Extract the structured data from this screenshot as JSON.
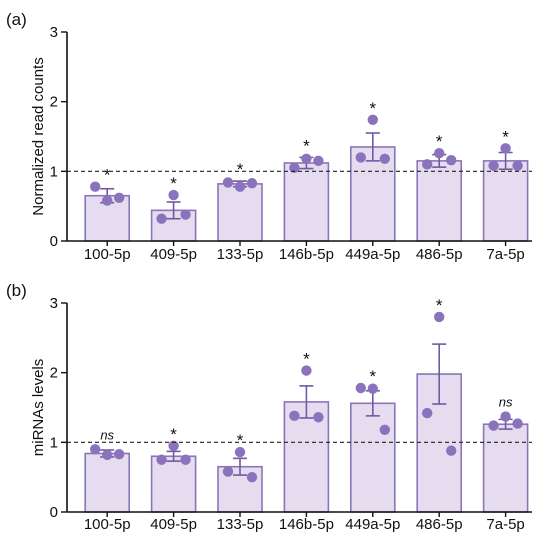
{
  "colors": {
    "bar_fill": "#e6dcf0",
    "bar_stroke": "#8a75b8",
    "dot": "#8a72bd",
    "error": "#6f5aa3",
    "axis": "#111111",
    "reference_line": "#222222"
  },
  "chart_data": [
    {
      "type": "bar",
      "panel_label": "(a)",
      "ylabel": "Normalized read counts",
      "ylim": [
        0,
        3
      ],
      "yticks": [
        "0",
        "1",
        "2",
        "3"
      ],
      "reference_line": 1,
      "categories": [
        "100-5p",
        "409-5p",
        "133-5p",
        "146b-5p",
        "449a-5p",
        "486-5p",
        "7a-5p"
      ],
      "values": [
        0.65,
        0.44,
        0.82,
        1.12,
        1.35,
        1.15,
        1.15
      ],
      "errors": [
        0.1,
        0.12,
        0.04,
        0.08,
        0.2,
        0.09,
        0.12
      ],
      "points": [
        [
          0.58,
          0.78,
          0.62
        ],
        [
          0.66,
          0.32,
          0.38
        ],
        [
          0.78,
          0.84,
          0.83
        ],
        [
          1.18,
          1.05,
          1.15
        ],
        [
          1.74,
          1.2,
          1.18
        ],
        [
          1.26,
          1.1,
          1.16
        ],
        [
          1.33,
          1.08,
          1.08
        ]
      ],
      "annotations": [
        "*",
        "*",
        "*",
        "*",
        "*",
        "*",
        "*"
      ]
    },
    {
      "type": "bar",
      "panel_label": "(b)",
      "ylabel": "miRNAs levels",
      "ylim": [
        0,
        3
      ],
      "yticks": [
        "0",
        "1",
        "2",
        "3"
      ],
      "reference_line": 1,
      "categories": [
        "100-5p",
        "409-5p",
        "133-5p",
        "146b-5p",
        "449a-5p",
        "486-5p",
        "7a-5p"
      ],
      "values": [
        0.84,
        0.8,
        0.65,
        1.58,
        1.56,
        1.98,
        1.26
      ],
      "errors": [
        0.05,
        0.07,
        0.12,
        0.23,
        0.18,
        0.43,
        0.07
      ],
      "points": [
        [
          0.82,
          0.9,
          0.83
        ],
        [
          0.95,
          0.75,
          0.75
        ],
        [
          0.86,
          0.58,
          0.5
        ],
        [
          2.03,
          1.38,
          1.36
        ],
        [
          1.77,
          1.78,
          1.18
        ],
        [
          2.8,
          1.42,
          0.88
        ],
        [
          1.37,
          1.24,
          1.27
        ]
      ],
      "annotations": [
        "ns",
        "*",
        "*",
        "*",
        "*",
        "*",
        "ns"
      ]
    }
  ]
}
